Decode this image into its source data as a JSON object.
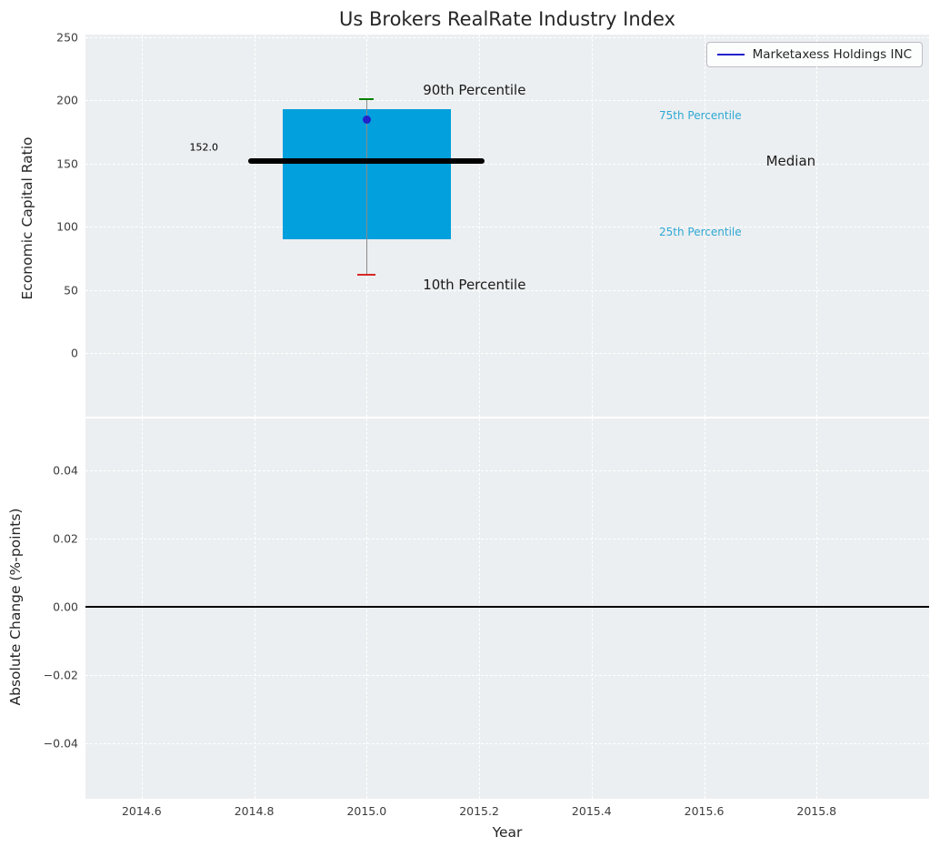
{
  "colors": {
    "box_fill": "#02a0dc",
    "percentile_text": "#2fa8d4",
    "median_line": "#000000",
    "whisker": "#8a8a8a",
    "cap_90": "#008000",
    "cap_10": "#d62728",
    "company_dot": "#2222cc",
    "legend_line": "#2222cc",
    "axes_background": "#eceff1",
    "gridline": "#ffffff",
    "zero_line": "#000000"
  },
  "chart_data": [
    {
      "type": "box",
      "subplot": "top",
      "title": "Us Brokers RealRate Industry Index",
      "ylabel": "Economic Capital Ratio",
      "xlim": [
        2014.5,
        2016.0
      ],
      "ylim": [
        -50,
        252
      ],
      "grid": true,
      "yticks": [
        {
          "v": 0,
          "label": "0"
        },
        {
          "v": 50,
          "label": "50"
        },
        {
          "v": 100,
          "label": "100"
        },
        {
          "v": 150,
          "label": "150"
        },
        {
          "v": 200,
          "label": "200"
        },
        {
          "v": 250,
          "label": "250"
        }
      ],
      "legend": {
        "position": "upper right",
        "entries": [
          {
            "label": "Marketaxess Holdings INC",
            "color": "#2222cc"
          }
        ]
      },
      "box": {
        "x": 2015.0,
        "box_half_width": 0.15,
        "median_half_width": 0.21,
        "p10": 62,
        "p25": 90,
        "median": 152,
        "p75": 193,
        "p90": 201,
        "median_label": "152.0",
        "company": {
          "name": "Marketaxess Holdings INC",
          "year": 2015.0,
          "value": 185
        }
      },
      "annotations": [
        {
          "text": "90th Percentile",
          "x": 2015.1,
          "y": 208,
          "color": "#1a1a1a",
          "size": 15
        },
        {
          "text": "75th Percentile",
          "x": 2015.52,
          "y": 188,
          "color": "#2fa8d4",
          "size": 12
        },
        {
          "text": "Median",
          "x": 2015.71,
          "y": 152,
          "color": "#1a1a1a",
          "size": 15
        },
        {
          "text": "25th Percentile",
          "x": 2015.52,
          "y": 96,
          "color": "#2fa8d4",
          "size": 12
        },
        {
          "text": "10th Percentile",
          "x": 2015.1,
          "y": 54,
          "color": "#1a1a1a",
          "size": 15
        },
        {
          "text": "152.0",
          "x": 2014.685,
          "y": 163,
          "color": "#000000",
          "size": 11
        }
      ]
    },
    {
      "type": "line",
      "subplot": "bottom",
      "xlabel": "Year",
      "ylabel": "Absolute Change (%-points)",
      "xlim": [
        2014.5,
        2016.0
      ],
      "ylim": [
        -0.0563,
        0.0552
      ],
      "grid": true,
      "zero_line": 0.0,
      "series": [],
      "yticks": [
        {
          "v": -0.04,
          "label": "−0.04"
        },
        {
          "v": -0.02,
          "label": "−0.02"
        },
        {
          "v": 0,
          "label": "0.00"
        },
        {
          "v": 0.02,
          "label": "0.02"
        },
        {
          "v": 0.04,
          "label": "0.04"
        }
      ],
      "xticks": [
        {
          "v": 2014.6,
          "label": "2014.6"
        },
        {
          "v": 2014.8,
          "label": "2014.8"
        },
        {
          "v": 2015.0,
          "label": "2015.0"
        },
        {
          "v": 2015.2,
          "label": "2015.2"
        },
        {
          "v": 2015.4,
          "label": "2015.4"
        },
        {
          "v": 2015.6,
          "label": "2015.6"
        },
        {
          "v": 2015.8,
          "label": "2015.8"
        }
      ]
    }
  ]
}
